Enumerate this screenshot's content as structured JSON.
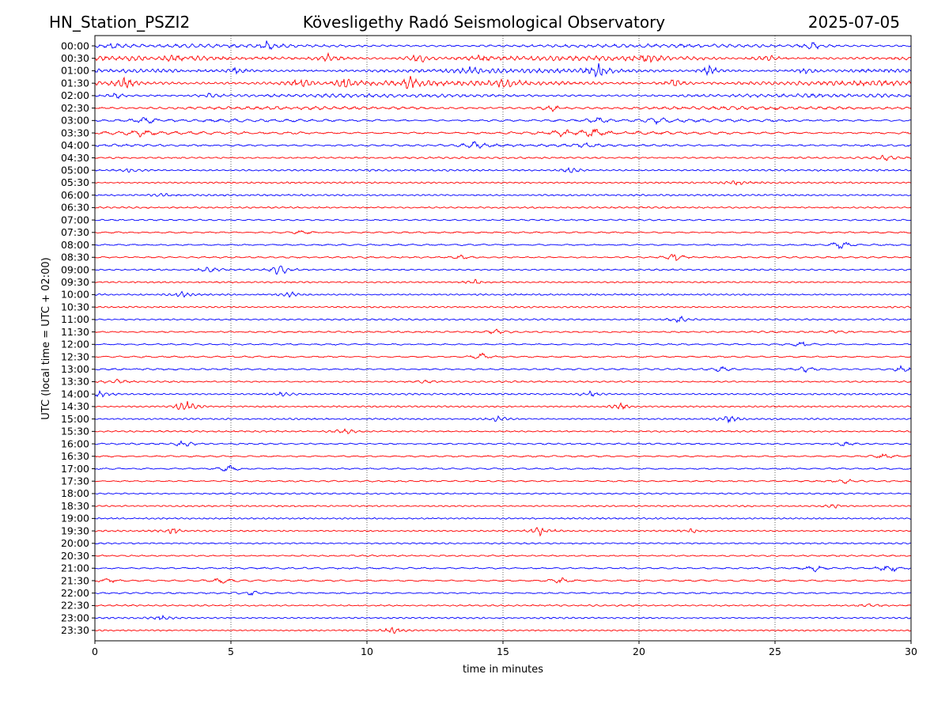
{
  "header": {
    "station": "HN_Station_PSZI2",
    "observatory": "Kövesligethy Radó Seismological Observatory",
    "date": "2025-07-05"
  },
  "chart_data": {
    "type": "line",
    "title": "Kövesligethy Radó Seismological Observatory",
    "xlabel": "time in minutes",
    "ylabel": "UTC (local time = UTC + 02:00)",
    "xlim": [
      0,
      30
    ],
    "xticks": [
      0,
      5,
      10,
      15,
      20,
      25,
      30
    ],
    "grid": "vertical dotted lines at each x tick",
    "trace_colors": [
      "#0000ff",
      "#ff0000"
    ],
    "rows": [
      {
        "label": "00:00",
        "activity": 0.55,
        "events": [
          [
            0.7,
            0.6
          ],
          [
            6.3,
            0.7
          ],
          [
            26.4,
            0.7
          ]
        ]
      },
      {
        "label": "00:30",
        "activity": 0.8,
        "events": [
          [
            3.1,
            0.6
          ],
          [
            8.6,
            0.9
          ],
          [
            11.9,
            0.9
          ],
          [
            14.2,
            0.6
          ],
          [
            20.3,
            0.7
          ],
          [
            24.8,
            0.6
          ]
        ]
      },
      {
        "label": "01:00",
        "activity": 0.7,
        "events": [
          [
            5.2,
            0.6
          ],
          [
            13.8,
            0.6
          ],
          [
            18.5,
            1.2
          ],
          [
            22.6,
            0.9
          ],
          [
            26.1,
            0.6
          ]
        ]
      },
      {
        "label": "01:30",
        "activity": 0.9,
        "events": [
          [
            1.1,
            1.0
          ],
          [
            7.5,
            1.1
          ],
          [
            9.2,
            0.9
          ],
          [
            11.6,
            1.0
          ],
          [
            15.1,
            1.1
          ],
          [
            21.3,
            0.8
          ]
        ]
      },
      {
        "label": "02:00",
        "activity": 0.55,
        "events": [
          [
            0.8,
            0.6
          ],
          [
            4.3,
            0.5
          ]
        ]
      },
      {
        "label": "02:30",
        "activity": 0.45,
        "events": [
          [
            16.8,
            0.7
          ]
        ]
      },
      {
        "label": "03:00",
        "activity": 0.4,
        "events": [
          [
            1.9,
            0.6
          ],
          [
            18.4,
            0.6
          ],
          [
            20.7,
            0.6
          ]
        ]
      },
      {
        "label": "03:30",
        "activity": 0.45,
        "events": [
          [
            1.7,
            0.6
          ],
          [
            17.2,
            0.6
          ],
          [
            18.3,
            0.8
          ]
        ]
      },
      {
        "label": "04:00",
        "activity": 0.3,
        "events": [
          [
            14.0,
            0.7
          ],
          [
            18.0,
            0.5
          ]
        ]
      },
      {
        "label": "04:30",
        "activity": 0.15,
        "events": [
          [
            29.0,
            0.5
          ]
        ]
      },
      {
        "label": "05:00",
        "activity": 0.15,
        "events": [
          [
            1.3,
            0.5
          ],
          [
            17.5,
            0.5
          ]
        ]
      },
      {
        "label": "05:30",
        "activity": 0.12,
        "events": [
          [
            23.6,
            0.4
          ]
        ]
      },
      {
        "label": "06:00",
        "activity": 0.12,
        "events": [
          [
            2.5,
            0.4
          ]
        ]
      },
      {
        "label": "06:30",
        "activity": 0.08,
        "events": []
      },
      {
        "label": "07:00",
        "activity": 0.08,
        "events": []
      },
      {
        "label": "07:30",
        "activity": 0.08,
        "events": [
          [
            7.6,
            0.4
          ]
        ]
      },
      {
        "label": "08:00",
        "activity": 0.1,
        "events": [
          [
            27.4,
            0.8
          ]
        ]
      },
      {
        "label": "08:30",
        "activity": 0.1,
        "events": [
          [
            13.5,
            0.4
          ],
          [
            21.3,
            0.8
          ]
        ]
      },
      {
        "label": "09:00",
        "activity": 0.1,
        "events": [
          [
            4.2,
            0.5
          ],
          [
            6.8,
            1.2
          ]
        ]
      },
      {
        "label": "09:30",
        "activity": 0.08,
        "events": [
          [
            14.0,
            0.5
          ]
        ]
      },
      {
        "label": "10:00",
        "activity": 0.1,
        "events": [
          [
            3.2,
            0.5
          ],
          [
            7.2,
            0.5
          ]
        ]
      },
      {
        "label": "10:30",
        "activity": 0.08,
        "events": []
      },
      {
        "label": "11:00",
        "activity": 0.1,
        "events": [
          [
            21.5,
            0.7
          ]
        ]
      },
      {
        "label": "11:30",
        "activity": 0.1,
        "events": [
          [
            14.8,
            0.5
          ],
          [
            27.2,
            0.5
          ]
        ]
      },
      {
        "label": "12:00",
        "activity": 0.08,
        "events": [
          [
            26.0,
            0.6
          ]
        ]
      },
      {
        "label": "12:30",
        "activity": 0.1,
        "events": [
          [
            14.2,
            0.8
          ]
        ]
      },
      {
        "label": "13:00",
        "activity": 0.12,
        "events": [
          [
            23.0,
            0.5
          ],
          [
            26.1,
            0.7
          ],
          [
            29.7,
            0.8
          ]
        ]
      },
      {
        "label": "13:30",
        "activity": 0.1,
        "events": [
          [
            0.8,
            0.5
          ],
          [
            12.2,
            0.4
          ]
        ]
      },
      {
        "label": "14:00",
        "activity": 0.12,
        "events": [
          [
            0.2,
            0.6
          ],
          [
            6.9,
            0.4
          ],
          [
            18.2,
            0.6
          ]
        ]
      },
      {
        "label": "14:30",
        "activity": 0.1,
        "events": [
          [
            3.3,
            1.5
          ],
          [
            19.3,
            0.7
          ]
        ]
      },
      {
        "label": "15:00",
        "activity": 0.1,
        "events": [
          [
            14.8,
            0.6
          ],
          [
            23.3,
            0.6
          ]
        ]
      },
      {
        "label": "15:30",
        "activity": 0.1,
        "events": [
          [
            9.2,
            0.6
          ]
        ]
      },
      {
        "label": "16:00",
        "activity": 0.1,
        "events": [
          [
            3.3,
            0.7
          ],
          [
            27.5,
            0.5
          ]
        ]
      },
      {
        "label": "16:30",
        "activity": 0.1,
        "events": [
          [
            29.0,
            0.5
          ]
        ]
      },
      {
        "label": "17:00",
        "activity": 0.1,
        "events": [
          [
            4.9,
            0.7
          ]
        ]
      },
      {
        "label": "17:30",
        "activity": 0.08,
        "events": [
          [
            27.6,
            0.4
          ]
        ]
      },
      {
        "label": "18:00",
        "activity": 0.08,
        "events": []
      },
      {
        "label": "18:30",
        "activity": 0.08,
        "events": [
          [
            27.2,
            0.4
          ]
        ]
      },
      {
        "label": "19:00",
        "activity": 0.08,
        "events": []
      },
      {
        "label": "19:30",
        "activity": 0.1,
        "events": [
          [
            2.9,
            0.6
          ],
          [
            16.4,
            0.9
          ],
          [
            22.0,
            0.5
          ]
        ]
      },
      {
        "label": "20:00",
        "activity": 0.08,
        "events": []
      },
      {
        "label": "20:30",
        "activity": 0.08,
        "events": []
      },
      {
        "label": "21:00",
        "activity": 0.12,
        "events": [
          [
            26.5,
            0.6
          ],
          [
            29.2,
            1.0
          ]
        ]
      },
      {
        "label": "21:30",
        "activity": 0.12,
        "events": [
          [
            0.5,
            0.5
          ],
          [
            4.7,
            0.6
          ],
          [
            17.1,
            0.7
          ]
        ]
      },
      {
        "label": "22:00",
        "activity": 0.08,
        "events": [
          [
            5.8,
            0.4
          ]
        ]
      },
      {
        "label": "22:30",
        "activity": 0.08,
        "events": [
          [
            28.5,
            0.4
          ]
        ]
      },
      {
        "label": "23:00",
        "activity": 0.08,
        "events": [
          [
            2.4,
            0.6
          ]
        ]
      },
      {
        "label": "23:30",
        "activity": 0.08,
        "events": [
          [
            11.0,
            0.6
          ]
        ]
      }
    ]
  }
}
